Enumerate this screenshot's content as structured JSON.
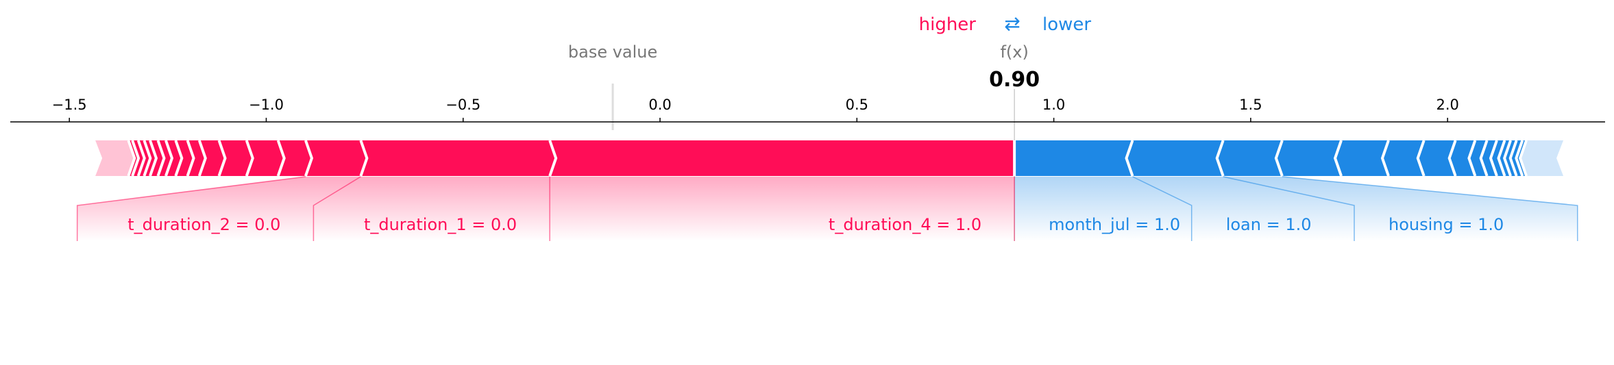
{
  "chart_data": {
    "type": "force",
    "legend": {
      "higher": "higher",
      "arrows": "⇄",
      "lower": "lower"
    },
    "base_value_label": "base value",
    "fx_label": "f(x)",
    "fx_value_text": "0.90",
    "base_value": -0.12,
    "output_value": 0.9,
    "xlim": [
      -1.65,
      2.4
    ],
    "ticks": [
      -1.5,
      -1.0,
      -0.5,
      0.0,
      0.5,
      1.0,
      1.5,
      2.0
    ],
    "tick_labels": [
      "−1.5",
      "−1.0",
      "−0.5",
      "0.0",
      "0.5",
      "1.0",
      "1.5",
      "2.0"
    ],
    "colors": {
      "positive": "#ff0d57",
      "negative": "#1e88e5",
      "positive_light": "#ffc3d5",
      "negative_light": "#d1e6fa",
      "axis": "#000000",
      "base_line": "#dddddd",
      "muted_text": "#777777"
    },
    "positive_features": [
      {
        "label": "t_duration_4 = 1.0",
        "start": -0.28,
        "end": 0.9
      },
      {
        "label": "t_duration_1 = 0.0",
        "start": -0.76,
        "end": -0.28
      },
      {
        "label": "t_duration_2 = 0.0",
        "start": -0.9,
        "end": -0.76
      }
    ],
    "positive_small_boundaries": [
      -0.97,
      -1.05,
      -1.12,
      -1.17,
      -1.2,
      -1.23,
      -1.255,
      -1.275,
      -1.295,
      -1.31,
      -1.325,
      -1.34,
      -1.35
    ],
    "positive_end": -1.42,
    "negative_features": [
      {
        "label": "month_jul = 1.0",
        "start": 0.9,
        "end": 1.2
      },
      {
        "label": "loan = 1.0",
        "start": 1.2,
        "end": 1.43
      },
      {
        "label": "housing = 1.0",
        "start": 1.43,
        "end": 1.58
      }
    ],
    "negative_small_boundaries": [
      1.73,
      1.85,
      1.94,
      2.02,
      2.07,
      2.1,
      2.125,
      2.145,
      2.16,
      2.175,
      2.19,
      2.2
    ],
    "negative_end": 2.28
  }
}
